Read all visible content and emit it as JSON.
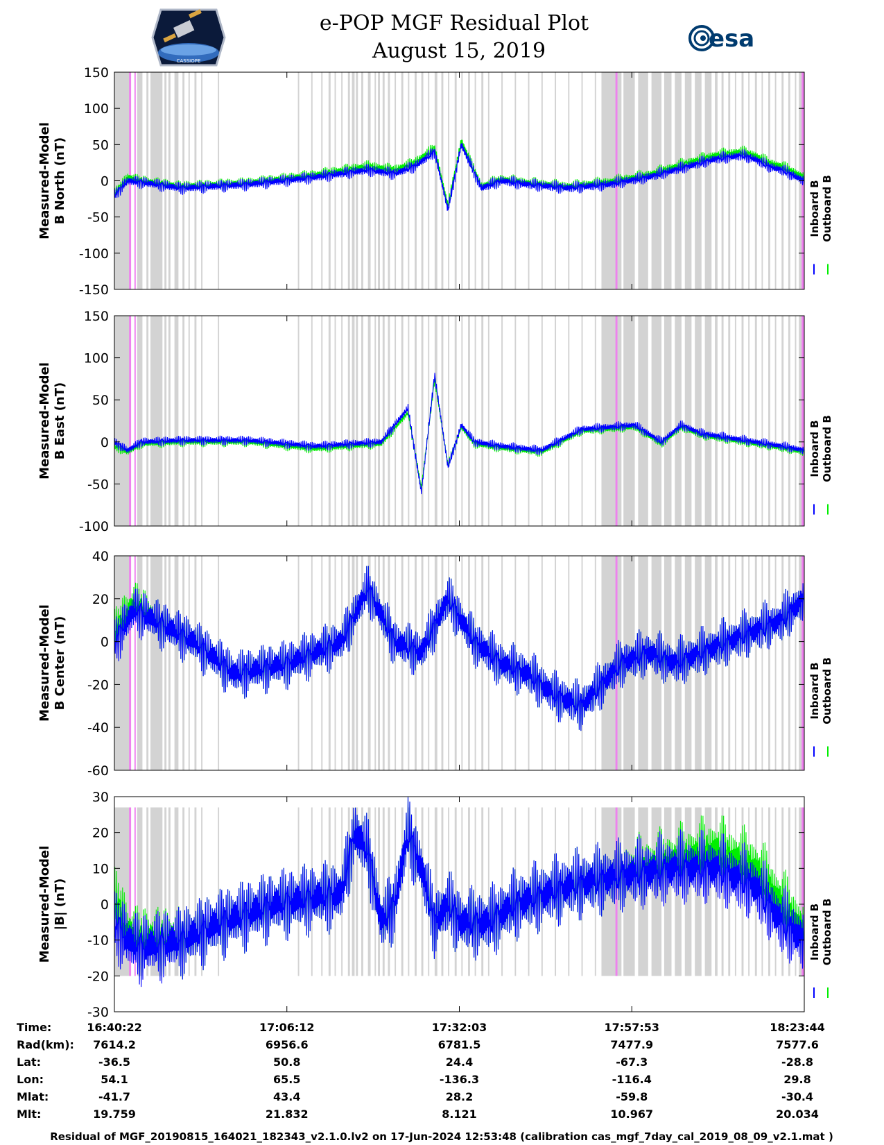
{
  "title": {
    "line1": "e-POP MGF Residual Plot",
    "line2": "August 15, 2019"
  },
  "logos": {
    "left_text": "CASSIOPE",
    "right_text": "esa"
  },
  "colors": {
    "inboard": "#0000ff",
    "outboard": "#00ee00",
    "shade": "#d3d3d3",
    "pink": "#ee82ee"
  },
  "legend": {
    "inboard": "Inboard B",
    "outboard": "Outboard B"
  },
  "ephemeris": {
    "labels": [
      "Time:",
      "Rad(km):",
      "Lat:",
      "Lon:",
      "Mlat:",
      "Mlt:"
    ],
    "columns": [
      [
        "16:40:22",
        "7614.2",
        "-36.5",
        "54.1",
        "-41.7",
        "19.759"
      ],
      [
        "17:06:12",
        "6956.6",
        "50.8",
        "65.5",
        "43.4",
        "21.832"
      ],
      [
        "17:32:03",
        "6781.5",
        "24.4",
        "-136.3",
        "28.2",
        "8.121"
      ],
      [
        "17:57:53",
        "7477.9",
        "-67.3",
        "-116.4",
        "-59.8",
        "10.967"
      ],
      [
        "18:23:44",
        "7577.6",
        "-28.8",
        "29.8",
        "-30.4",
        "20.034"
      ]
    ]
  },
  "footer": "Residual of MGF_20190815_164021_182343_v2.1.0.lv2 on 17-Jun-2024 12:53:48 (calibration cas_mgf_7day_cal_2019_08_09_v2.1.mat )",
  "chart_data": [
    {
      "type": "line",
      "ylabel": [
        "Measured-Model",
        "B North (nT)"
      ],
      "ylim": [
        -150,
        150
      ],
      "yticks": [
        -150,
        -100,
        -50,
        0,
        50,
        100,
        150
      ],
      "xlim_min": [
        0,
        103.4
      ],
      "series": [
        {
          "name": "Inboard B",
          "x_min": [
            0,
            2,
            4,
            10,
            20,
            30,
            38,
            42,
            45,
            48,
            50,
            52,
            55,
            58,
            62,
            68,
            74,
            80,
            86,
            90,
            94,
            96,
            98,
            100,
            103.4
          ],
          "values": [
            -20,
            0,
            -2,
            -10,
            -5,
            5,
            15,
            10,
            20,
            40,
            -40,
            50,
            -10,
            0,
            -5,
            -10,
            -5,
            5,
            20,
            30,
            35,
            30,
            20,
            15,
            0
          ]
        },
        {
          "name": "Outboard B",
          "x_min": [
            0,
            2,
            4,
            10,
            20,
            30,
            38,
            42,
            45,
            48,
            50,
            52,
            55,
            58,
            62,
            68,
            74,
            80,
            86,
            90,
            94,
            96,
            98,
            100,
            103.4
          ],
          "values": [
            -18,
            5,
            0,
            -8,
            -3,
            8,
            20,
            15,
            25,
            45,
            -35,
            55,
            -8,
            2,
            -3,
            -8,
            -2,
            8,
            25,
            35,
            40,
            35,
            25,
            20,
            5
          ]
        }
      ]
    },
    {
      "type": "line",
      "ylabel": [
        "Measured-Model",
        "B East (nT)"
      ],
      "ylim": [
        -100,
        150
      ],
      "yticks": [
        -100,
        -50,
        0,
        50,
        100,
        150
      ],
      "xlim_min": [
        0,
        103.4
      ],
      "series": [
        {
          "name": "Inboard B",
          "x_min": [
            0,
            2,
            4,
            10,
            20,
            30,
            40,
            44,
            46,
            48,
            50,
            52,
            54,
            58,
            64,
            70,
            78,
            82,
            85,
            88,
            92,
            96,
            100,
            103.4
          ],
          "values": [
            0,
            -10,
            0,
            2,
            2,
            -5,
            0,
            40,
            -60,
            80,
            -30,
            20,
            0,
            -5,
            -10,
            15,
            20,
            0,
            20,
            10,
            5,
            0,
            -5,
            -10
          ]
        },
        {
          "name": "Outboard B",
          "x_min": [
            0,
            2,
            4,
            10,
            20,
            30,
            40,
            44,
            46,
            48,
            50,
            52,
            54,
            58,
            64,
            70,
            78,
            82,
            85,
            88,
            92,
            96,
            100,
            103.4
          ],
          "values": [
            -5,
            -12,
            -2,
            0,
            0,
            -8,
            -2,
            35,
            -55,
            75,
            -28,
            18,
            -2,
            -7,
            -12,
            13,
            18,
            -2,
            18,
            8,
            3,
            -2,
            -7,
            -12
          ]
        }
      ]
    },
    {
      "type": "line",
      "ylabel": [
        "Measured-Model",
        "B Center (nT)"
      ],
      "ylim": [
        -60,
        40
      ],
      "yticks": [
        -60,
        -40,
        -20,
        0,
        20,
        40
      ],
      "xlim_min": [
        0,
        103.4
      ],
      "series": [
        {
          "name": "Inboard B",
          "x_min": [
            0,
            3,
            6,
            12,
            18,
            26,
            34,
            38,
            42,
            46,
            50,
            54,
            58,
            62,
            66,
            70,
            76,
            80,
            84,
            88,
            92,
            96,
            100,
            103.4
          ],
          "values": [
            0,
            15,
            10,
            0,
            -15,
            -10,
            0,
            25,
            0,
            -5,
            20,
            0,
            -10,
            -15,
            -25,
            -30,
            -10,
            -5,
            -10,
            -5,
            0,
            5,
            10,
            20
          ]
        },
        {
          "name": "Outboard B",
          "x_min": [
            0,
            3,
            6,
            12,
            18,
            26,
            34,
            38,
            42,
            46,
            50,
            54,
            58,
            62,
            66,
            70,
            76,
            80,
            84,
            88,
            92,
            96,
            100,
            103.4
          ],
          "values": [
            5,
            18,
            10,
            0,
            -15,
            -10,
            0,
            25,
            0,
            -5,
            20,
            0,
            -10,
            -15,
            -25,
            -30,
            -10,
            -5,
            -10,
            -5,
            0,
            5,
            10,
            20
          ]
        }
      ]
    },
    {
      "type": "line",
      "ylabel": [
        "Measured-Model",
        "|B| (nT)"
      ],
      "ylim": [
        -30,
        30
      ],
      "yticks": [
        -30,
        -20,
        -10,
        0,
        10,
        20,
        30
      ],
      "xlim_min": [
        0,
        103.4
      ],
      "series": [
        {
          "name": "Inboard B",
          "x_min": [
            0,
            2,
            4,
            10,
            16,
            24,
            30,
            34,
            36,
            38,
            40,
            42,
            44,
            46,
            48,
            50,
            52,
            56,
            60,
            68,
            76,
            84,
            90,
            96,
            100,
            103.4
          ],
          "values": [
            -5,
            -10,
            -12,
            -10,
            -5,
            0,
            2,
            3,
            20,
            15,
            -5,
            0,
            20,
            10,
            -5,
            0,
            -5,
            -5,
            0,
            5,
            8,
            10,
            10,
            5,
            -5,
            -10
          ]
        },
        {
          "name": "Outboard B",
          "x_min": [
            0,
            2,
            4,
            10,
            16,
            24,
            30,
            34,
            36,
            38,
            40,
            42,
            44,
            46,
            48,
            50,
            52,
            56,
            60,
            68,
            76,
            84,
            90,
            96,
            100,
            103.4
          ],
          "values": [
            2,
            -8,
            -10,
            -10,
            -5,
            0,
            2,
            3,
            20,
            15,
            -5,
            0,
            20,
            10,
            -5,
            0,
            -5,
            -5,
            0,
            5,
            8,
            12,
            15,
            10,
            0,
            -8
          ]
        }
      ]
    }
  ],
  "shading": {
    "gray_bands_min": [
      [
        0,
        2.5
      ],
      [
        3.4,
        4.2
      ],
      [
        4.8,
        5.1
      ],
      [
        5.4,
        7.2
      ],
      [
        7.5,
        7.8
      ],
      [
        8.1,
        8.4
      ],
      [
        9,
        9.6
      ],
      [
        10.2,
        10.5
      ],
      [
        11.1,
        11.3
      ],
      [
        12,
        12.3
      ],
      [
        13,
        13.2
      ],
      [
        15.5,
        15.7
      ],
      [
        27.5,
        27.7
      ],
      [
        29.5,
        29.7
      ],
      [
        31,
        31.2
      ],
      [
        32.1,
        32.4
      ],
      [
        33,
        33.2
      ],
      [
        34,
        34.2
      ],
      [
        35,
        35.3
      ],
      [
        35.6,
        36
      ],
      [
        36.2,
        36.5
      ],
      [
        37,
        37.3
      ],
      [
        38,
        38.4
      ],
      [
        39,
        39.2
      ],
      [
        39.5,
        39.8
      ],
      [
        40.2,
        40.5
      ],
      [
        41,
        41.3
      ],
      [
        42,
        42.2
      ],
      [
        43,
        43.3
      ],
      [
        44,
        44.2
      ],
      [
        45,
        45.3
      ],
      [
        46,
        46.3
      ],
      [
        47,
        47.2
      ],
      [
        48,
        48.4
      ],
      [
        49,
        49.3
      ],
      [
        50,
        50.2
      ],
      [
        51,
        51.3
      ],
      [
        52,
        52.2
      ],
      [
        53,
        53.3
      ],
      [
        54,
        54.2
      ],
      [
        55,
        55.3
      ],
      [
        56,
        56.2
      ],
      [
        58,
        58.2
      ],
      [
        60,
        60.2
      ],
      [
        62,
        62.2
      ],
      [
        64,
        64.2
      ],
      [
        66,
        66.2
      ],
      [
        68,
        68.2
      ],
      [
        70,
        70.2
      ],
      [
        72,
        72.2
      ],
      [
        73,
        76
      ],
      [
        76.3,
        78
      ],
      [
        78.5,
        80
      ],
      [
        80.5,
        82
      ],
      [
        82.4,
        83.5
      ],
      [
        84,
        85
      ],
      [
        85.5,
        86.5
      ],
      [
        87,
        88
      ],
      [
        88.5,
        89.5
      ],
      [
        90,
        90.4
      ],
      [
        91,
        91.3
      ],
      [
        92,
        92.3
      ],
      [
        93,
        93.2
      ],
      [
        94,
        94.3
      ],
      [
        95,
        95.2
      ],
      [
        96,
        96.3
      ],
      [
        97,
        97.2
      ],
      [
        98,
        98.3
      ],
      [
        99,
        99.2
      ],
      [
        100,
        100.3
      ],
      [
        101,
        101.3
      ],
      [
        102,
        102.2
      ],
      [
        102.6,
        103
      ]
    ],
    "pink_bands_min": [
      [
        2.2,
        2.5
      ],
      [
        3.0,
        3.2
      ],
      [
        75.1,
        75.4
      ],
      [
        103.0,
        103.4
      ]
    ]
  }
}
